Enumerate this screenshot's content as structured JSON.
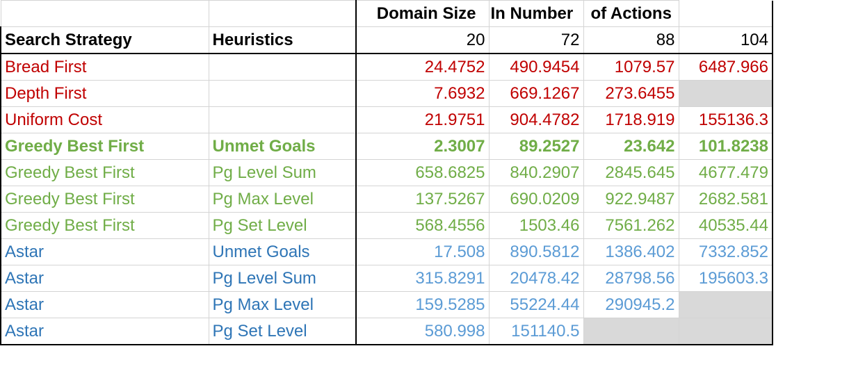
{
  "colors": {
    "red": "#c00000",
    "green": "#70ad47",
    "blue_label": "#2e75b6",
    "blue_value": "#5b9bd5",
    "empty_cell": "#d9d9d9",
    "text": "#000000"
  },
  "top_header": {
    "label_parts": [
      "Domain Size",
      "In Number",
      "of Actions"
    ]
  },
  "column_headers": {
    "strategy": "Search Strategy",
    "heuristics": "Heuristics",
    "sizes": [
      "20",
      "72",
      "88",
      "104"
    ]
  },
  "rows": [
    {
      "strategy": "Bread First",
      "heuristic": "",
      "values": [
        "24.4752",
        "490.9454",
        "1079.57",
        "6487.966"
      ],
      "group": "red",
      "bold": false
    },
    {
      "strategy": "Depth First",
      "heuristic": "",
      "values": [
        "7.6932",
        "669.1267",
        "273.6455",
        ""
      ],
      "group": "red",
      "bold": false
    },
    {
      "strategy": "Uniform Cost",
      "heuristic": "",
      "values": [
        "21.9751",
        "904.4782",
        "1718.919",
        "155136.3"
      ],
      "group": "red",
      "bold": false
    },
    {
      "strategy": "Greedy Best First",
      "heuristic": "Unmet Goals",
      "values": [
        "2.3007",
        "89.2527",
        "23.642",
        "101.8238"
      ],
      "group": "green",
      "bold": true
    },
    {
      "strategy": "Greedy Best First",
      "heuristic": "Pg Level Sum",
      "values": [
        "658.6825",
        "840.2907",
        "2845.645",
        "4677.479"
      ],
      "group": "green",
      "bold": false
    },
    {
      "strategy": "Greedy Best First",
      "heuristic": "Pg Max Level",
      "values": [
        "137.5267",
        "690.0209",
        "922.9487",
        "2682.581"
      ],
      "group": "green",
      "bold": false
    },
    {
      "strategy": "Greedy Best First",
      "heuristic": "Pg Set Level",
      "values": [
        "568.4556",
        "1503.46",
        "7561.262",
        "40535.44"
      ],
      "group": "green",
      "bold": false
    },
    {
      "strategy": "Astar",
      "heuristic": "Unmet Goals",
      "values": [
        "17.508",
        "890.5812",
        "1386.402",
        "7332.852"
      ],
      "group": "blue",
      "bold": false
    },
    {
      "strategy": "Astar",
      "heuristic": "Pg Level Sum",
      "values": [
        "315.8291",
        "20478.42",
        "28798.56",
        "195603.3"
      ],
      "group": "blue",
      "bold": false
    },
    {
      "strategy": "Astar",
      "heuristic": "Pg Max Level",
      "values": [
        "159.5285",
        "55224.44",
        "290945.2",
        ""
      ],
      "group": "blue",
      "bold": false
    },
    {
      "strategy": "Astar",
      "heuristic": "Pg Set Level",
      "values": [
        "580.998",
        "151140.5",
        "",
        ""
      ],
      "group": "blue",
      "bold": false
    }
  ]
}
